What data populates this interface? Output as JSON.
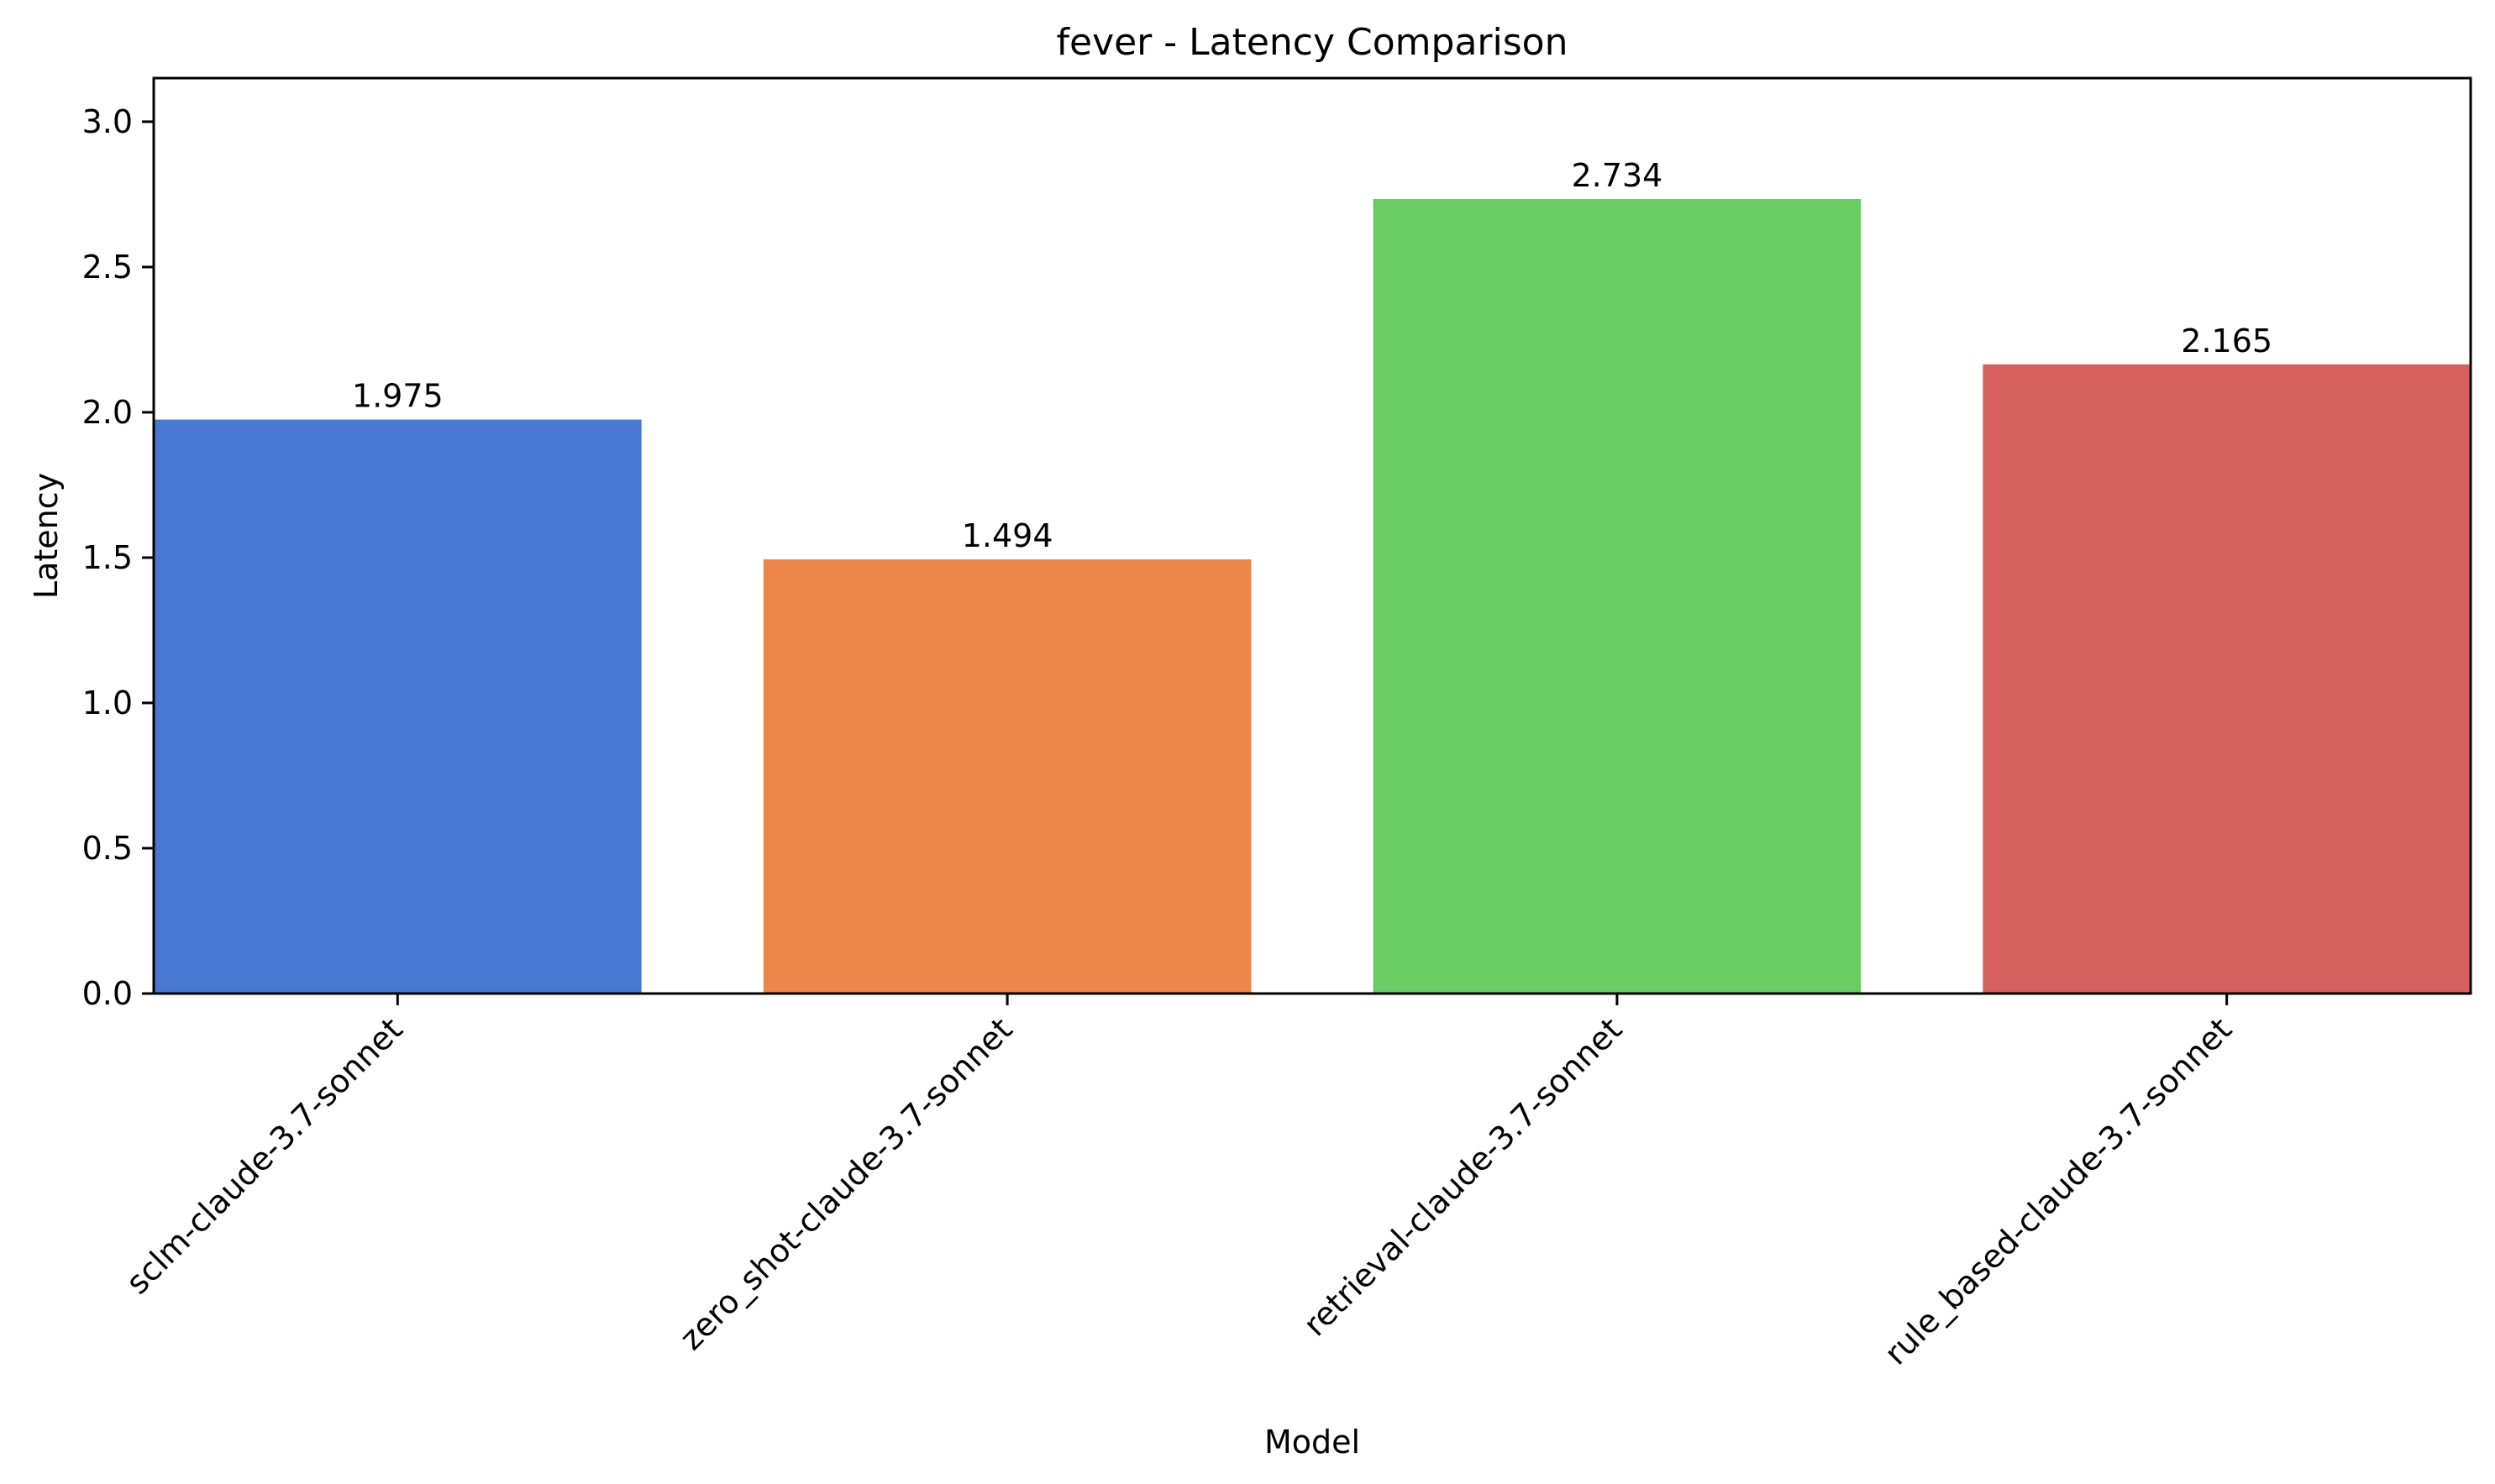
{
  "chart_data": {
    "type": "bar",
    "title": "fever - Latency Comparison",
    "xlabel": "Model",
    "ylabel": "Latency",
    "categories": [
      "sclm-claude-3.7-sonnet",
      "zero_shot-claude-3.7-sonnet",
      "retrieval-claude-3.7-sonnet",
      "rule_based-claude-3.7-sonnet"
    ],
    "values": [
      1.975,
      1.494,
      2.734,
      2.165
    ],
    "value_labels": [
      "1.975",
      "1.494",
      "2.734",
      "2.165"
    ],
    "colors": [
      "#4878cf",
      "#ee854a",
      "#6acc65",
      "#d65f5f"
    ],
    "ylim": [
      0,
      3.15
    ],
    "yticks": [
      {
        "value": 0.0,
        "label": "0.0"
      },
      {
        "value": 0.5,
        "label": "0.5"
      },
      {
        "value": 1.0,
        "label": "1.0"
      },
      {
        "value": 1.5,
        "label": "1.5"
      },
      {
        "value": 2.0,
        "label": "2.0"
      },
      {
        "value": 2.5,
        "label": "2.5"
      },
      {
        "value": 3.0,
        "label": "3.0"
      }
    ],
    "grid": false,
    "legend": "none"
  }
}
